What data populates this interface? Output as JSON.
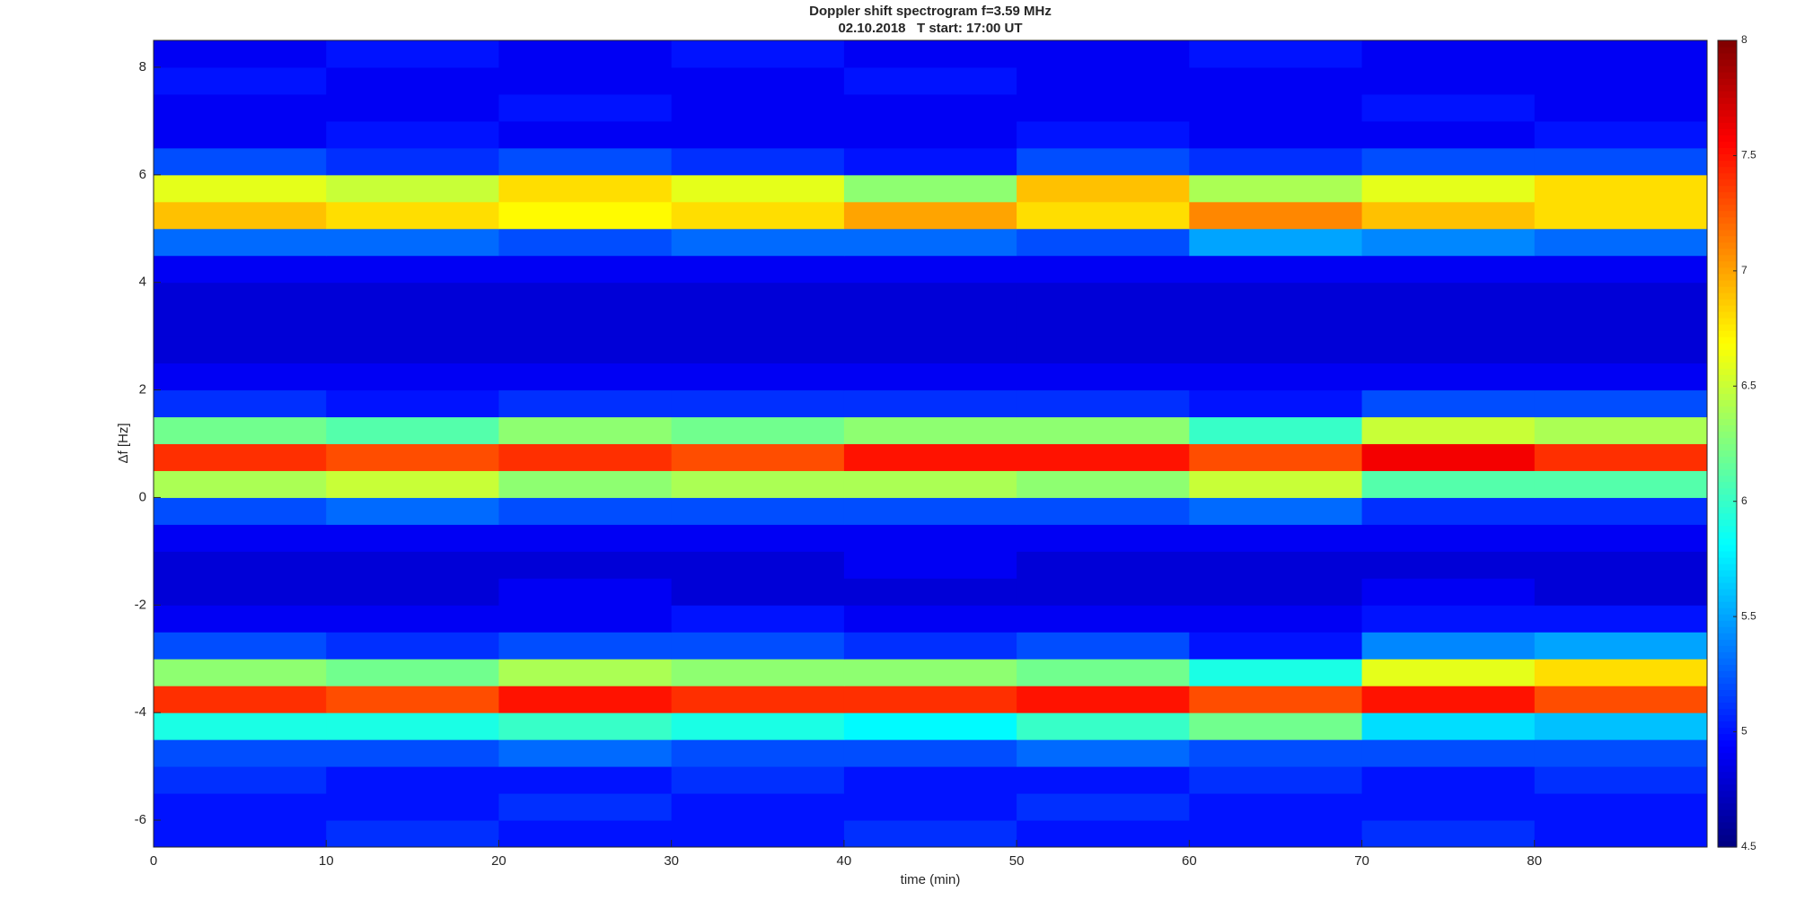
{
  "chart_data": {
    "type": "heatmap",
    "title": "Doppler shift spectrogram f=3.59 MHz",
    "subtitle": "02.10.2018   T start: 17:00 UT",
    "x_label": "time (min)",
    "y_label": "Δf [Hz]",
    "xlim": [
      0,
      90
    ],
    "xticks": [
      0,
      10,
      20,
      30,
      40,
      50,
      60,
      70,
      80
    ],
    "ylim": [
      -6.5,
      8.5
    ],
    "yticks": [
      -6,
      -4,
      -2,
      0,
      2,
      4,
      6,
      8
    ],
    "clim": [
      4.5,
      8
    ],
    "cticks": [
      4.5,
      5,
      5.5,
      6,
      6.5,
      7,
      7.5,
      8
    ],
    "colormap": "jet",
    "x": [
      5,
      15,
      25,
      35,
      45,
      55,
      65,
      75,
      85
    ],
    "y": [
      -6.25,
      -5.75,
      -5.25,
      -4.75,
      -4.25,
      -3.75,
      -3.25,
      -2.75,
      -2.25,
      -1.75,
      -1.25,
      -0.75,
      -0.25,
      0.25,
      0.75,
      1.25,
      1.75,
      2.25,
      2.75,
      3.25,
      3.75,
      4.25,
      4.75,
      5.25,
      5.75,
      6.25,
      6.75,
      7.25,
      7.75,
      8.25
    ],
    "z": [
      [
        5.0,
        5.1,
        5.0,
        5.0,
        5.1,
        5.0,
        5.0,
        5.1,
        5.0
      ],
      [
        5.0,
        5.0,
        5.1,
        5.0,
        5.0,
        5.1,
        5.0,
        5.0,
        5.0
      ],
      [
        5.1,
        5.0,
        5.0,
        5.1,
        5.0,
        5.0,
        5.1,
        5.0,
        5.1
      ],
      [
        5.2,
        5.2,
        5.3,
        5.2,
        5.2,
        5.3,
        5.2,
        5.2,
        5.2
      ],
      [
        5.9,
        5.9,
        6.0,
        5.9,
        5.8,
        6.0,
        6.2,
        5.7,
        5.6
      ],
      [
        7.4,
        7.3,
        7.5,
        7.4,
        7.4,
        7.5,
        7.3,
        7.5,
        7.3
      ],
      [
        6.3,
        6.2,
        6.4,
        6.3,
        6.3,
        6.2,
        5.9,
        6.6,
        6.8
      ],
      [
        5.2,
        5.1,
        5.2,
        5.2,
        5.1,
        5.2,
        5.0,
        5.4,
        5.5
      ],
      [
        4.9,
        4.9,
        4.9,
        5.0,
        4.9,
        4.9,
        4.9,
        5.0,
        5.0
      ],
      [
        4.8,
        4.8,
        4.9,
        4.8,
        4.8,
        4.8,
        4.8,
        4.9,
        4.8
      ],
      [
        4.8,
        4.8,
        4.8,
        4.8,
        4.9,
        4.8,
        4.8,
        4.8,
        4.8
      ],
      [
        4.9,
        4.9,
        4.9,
        4.9,
        4.9,
        4.9,
        4.9,
        4.9,
        4.9
      ],
      [
        5.2,
        5.3,
        5.2,
        5.2,
        5.2,
        5.2,
        5.3,
        5.1,
        5.1
      ],
      [
        6.4,
        6.5,
        6.3,
        6.4,
        6.4,
        6.3,
        6.5,
        6.1,
        6.1
      ],
      [
        7.4,
        7.3,
        7.4,
        7.3,
        7.5,
        7.5,
        7.3,
        7.6,
        7.4
      ],
      [
        6.2,
        6.1,
        6.3,
        6.2,
        6.3,
        6.3,
        6.0,
        6.5,
        6.4
      ],
      [
        5.1,
        5.0,
        5.1,
        5.1,
        5.1,
        5.1,
        5.0,
        5.2,
        5.2
      ],
      [
        4.9,
        4.9,
        4.9,
        4.9,
        4.9,
        4.9,
        4.9,
        4.9,
        4.9
      ],
      [
        4.8,
        4.8,
        4.8,
        4.8,
        4.8,
        4.8,
        4.8,
        4.8,
        4.8
      ],
      [
        4.8,
        4.8,
        4.8,
        4.8,
        4.8,
        4.8,
        4.8,
        4.8,
        4.8
      ],
      [
        4.8,
        4.8,
        4.8,
        4.8,
        4.8,
        4.8,
        4.8,
        4.8,
        4.8
      ],
      [
        4.9,
        4.9,
        4.9,
        4.9,
        4.9,
        4.9,
        4.9,
        4.9,
        4.9
      ],
      [
        5.3,
        5.3,
        5.2,
        5.3,
        5.3,
        5.2,
        5.5,
        5.4,
        5.3
      ],
      [
        6.9,
        6.8,
        6.7,
        6.8,
        7.0,
        6.8,
        7.1,
        6.9,
        6.8
      ],
      [
        6.6,
        6.5,
        6.8,
        6.6,
        6.3,
        6.9,
        6.4,
        6.6,
        6.8
      ],
      [
        5.2,
        5.1,
        5.2,
        5.1,
        5.0,
        5.2,
        5.1,
        5.2,
        5.2
      ],
      [
        4.9,
        5.0,
        4.9,
        4.9,
        4.9,
        5.0,
        4.9,
        4.9,
        5.0
      ],
      [
        4.9,
        4.9,
        5.0,
        4.9,
        4.9,
        4.9,
        4.9,
        5.0,
        4.9
      ],
      [
        5.0,
        4.9,
        4.9,
        4.9,
        5.0,
        4.9,
        4.9,
        4.9,
        4.9
      ],
      [
        4.9,
        5.0,
        4.9,
        5.0,
        4.9,
        4.9,
        5.0,
        4.9,
        4.9
      ]
    ]
  }
}
